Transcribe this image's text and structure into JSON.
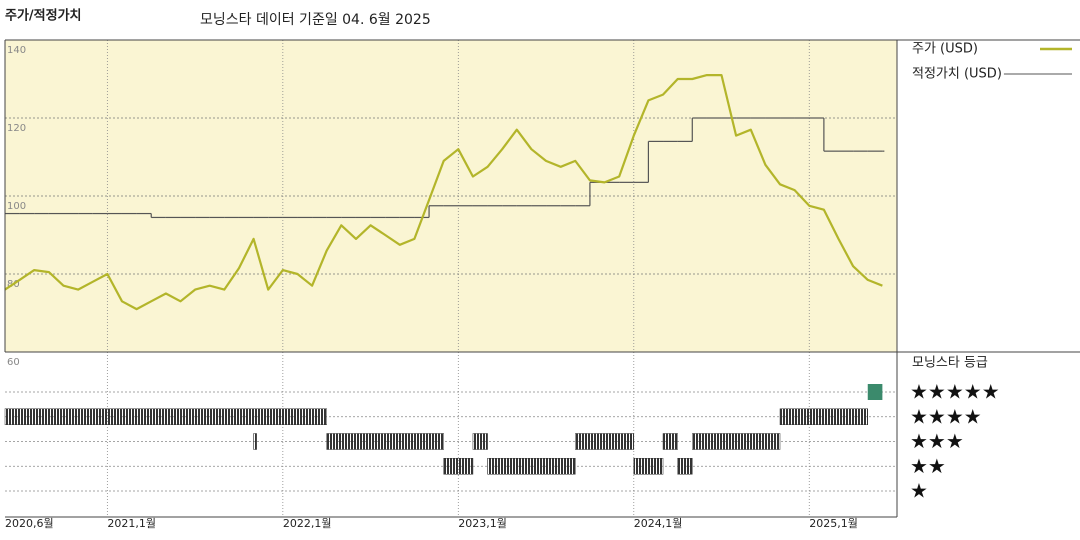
{
  "chart_data": {
    "type": "line",
    "title": "주가/적정가치",
    "subtitle": "모닝스타 데이터 기준일 04. 6월 2025",
    "x": [
      "2020-06",
      "2020-07",
      "2020-08",
      "2020-09",
      "2020-10",
      "2020-11",
      "2020-12",
      "2021-01",
      "2021-02",
      "2021-03",
      "2021-04",
      "2021-05",
      "2021-06",
      "2021-07",
      "2021-08",
      "2021-09",
      "2021-10",
      "2021-11",
      "2021-12",
      "2022-01",
      "2022-02",
      "2022-03",
      "2022-04",
      "2022-05",
      "2022-06",
      "2022-07",
      "2022-08",
      "2022-09",
      "2022-10",
      "2022-11",
      "2022-12",
      "2023-01",
      "2023-02",
      "2023-03",
      "2023-04",
      "2023-05",
      "2023-06",
      "2023-07",
      "2023-08",
      "2023-09",
      "2023-10",
      "2023-11",
      "2023-12",
      "2024-01",
      "2024-02",
      "2024-03",
      "2024-04",
      "2024-05",
      "2024-06",
      "2024-07",
      "2024-08",
      "2024-09",
      "2024-10",
      "2024-11",
      "2024-12",
      "2025-01",
      "2025-02",
      "2025-03",
      "2025-04",
      "2025-05",
      "2025-06"
    ],
    "series": [
      {
        "name": "주가 (USD)",
        "color": "#b3b52a",
        "style": "line",
        "values": [
          76,
          78.5,
          81,
          80.5,
          77,
          76,
          78,
          80,
          73,
          71,
          73,
          75,
          73,
          76,
          77,
          76,
          81.5,
          89,
          76,
          81,
          80,
          77,
          86,
          92.5,
          89,
          92.5,
          90,
          87.5,
          89,
          99,
          109,
          112,
          105,
          107.5,
          112,
          117,
          112,
          109,
          107.5,
          109,
          104,
          103.5,
          105,
          115.5,
          124.5,
          126,
          130,
          130,
          131,
          131,
          115.5,
          117,
          108,
          103,
          101.5,
          97.5,
          96.5,
          89,
          82,
          78.5,
          77
        ]
      },
      {
        "name": "적정가치 (USD)",
        "color": "#555555",
        "style": "step",
        "values": [
          95.5,
          95.5,
          95.5,
          95.5,
          95.5,
          95.5,
          95.5,
          95.5,
          95.5,
          95.5,
          94.5,
          94.5,
          94.5,
          94.5,
          94.5,
          94.5,
          94.5,
          94.5,
          94.5,
          94.5,
          94.5,
          94.5,
          94.5,
          94.5,
          94.5,
          94.5,
          94.5,
          94.5,
          94.5,
          97.5,
          97.5,
          97.5,
          97.5,
          97.5,
          97.5,
          97.5,
          97.5,
          97.5,
          97.5,
          97.5,
          103.5,
          103.5,
          103.5,
          103.5,
          114,
          114,
          114,
          120,
          120,
          120,
          120,
          120,
          120,
          120,
          120,
          120,
          111.5,
          111.5,
          111.5,
          111.5,
          111.5
        ]
      }
    ],
    "xlim": [
      "2020-06",
      "2025-07"
    ],
    "xticks": [
      {
        "value": "2020-06",
        "label": "2020,6월"
      },
      {
        "value": "2021-01",
        "label": "2021,1월"
      },
      {
        "value": "2022-01",
        "label": "2022,1월"
      },
      {
        "value": "2023-01",
        "label": "2023,1월"
      },
      {
        "value": "2024-01",
        "label": "2024,1월"
      },
      {
        "value": "2025-01",
        "label": "2025,1월"
      }
    ],
    "ylim": [
      60,
      140
    ],
    "yticks": [
      60,
      80,
      100,
      120,
      140
    ],
    "grid": true,
    "background": "#faf5d3",
    "rating_title": "모닝스타 등급",
    "rating_labels": [
      "★★★★★",
      "★★★★",
      "★★★",
      "★★",
      "★"
    ],
    "rating_color": "#333333",
    "rating_top_color": "#3b8a6c",
    "ratings": [
      {
        "start": "2020-06",
        "end": "2021-11",
        "stars": 4
      },
      {
        "start": "2021-11",
        "end": "2021-11",
        "stars": 3
      },
      {
        "start": "2021-11",
        "end": "2022-04",
        "stars": 4
      },
      {
        "start": "2022-04",
        "end": "2022-12",
        "stars": 3
      },
      {
        "start": "2022-12",
        "end": "2023-02",
        "stars": 2
      },
      {
        "start": "2023-02",
        "end": "2023-03",
        "stars": 3
      },
      {
        "start": "2023-03",
        "end": "2023-09",
        "stars": 2
      },
      {
        "start": "2023-09",
        "end": "2024-01",
        "stars": 3
      },
      {
        "start": "2024-01",
        "end": "2024-03",
        "stars": 2
      },
      {
        "start": "2024-03",
        "end": "2024-04",
        "stars": 3
      },
      {
        "start": "2024-04",
        "end": "2024-05",
        "stars": 2
      },
      {
        "start": "2024-05",
        "end": "2024-11",
        "stars": 3
      },
      {
        "start": "2024-11",
        "end": "2025-05",
        "stars": 4
      },
      {
        "start": "2025-05",
        "end": "2025-06",
        "stars": 5
      }
    ]
  }
}
